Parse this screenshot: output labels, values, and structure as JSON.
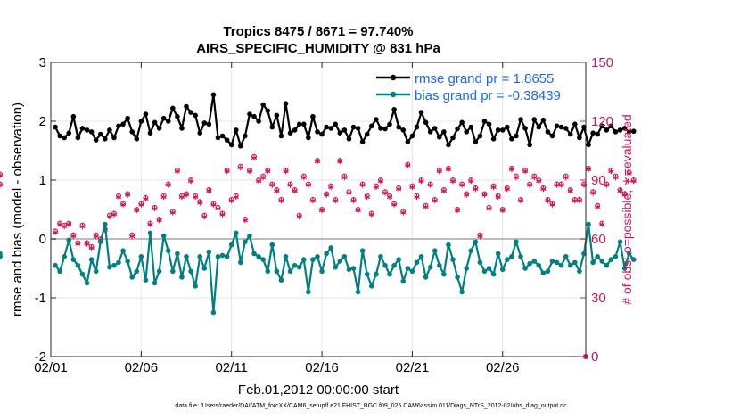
{
  "chart_data": {
    "type": "line",
    "title": "Tropics 8475 / 8671 = 97.740%",
    "subtitle": "AIRS_SPECIFIC_HUMIDITY @ 831 hPa",
    "xlabel": "Feb.01,2012 00:00:00 start",
    "ylabel": "rmse and bias (model - observation)",
    "ylabel_right": "# of obs: o=possible; ∗=evaluated",
    "xlim": [
      0,
      29.6
    ],
    "ylim": [
      -2,
      3
    ],
    "ylim_right": [
      0,
      150
    ],
    "x_ticks": [
      0,
      5,
      10,
      15,
      20,
      25
    ],
    "x_tick_labels": [
      "02/01",
      "02/06",
      "02/11",
      "02/16",
      "02/21",
      "02/26"
    ],
    "y_ticks": [
      -2,
      -1,
      0,
      1,
      2,
      3
    ],
    "y_tick_labels": [
      "-2",
      "-1",
      "0",
      "1",
      "2",
      "3"
    ],
    "y_right_ticks": [
      0,
      30,
      60,
      90,
      120,
      150
    ],
    "y_right_tick_labels": [
      "0",
      "30",
      "60",
      "90",
      "120",
      "150"
    ],
    "grid": true,
    "legend_position": "top-right",
    "series": [
      {
        "name": "rmse grand pr = 1.8655",
        "color": "#000000",
        "marker": "filled-circle",
        "values": [
          1.9,
          1.75,
          1.72,
          1.8,
          2.08,
          1.72,
          1.88,
          1.85,
          1.82,
          1.68,
          1.78,
          1.7,
          1.85,
          1.72,
          1.92,
          1.95,
          2.05,
          1.82,
          1.7,
          2.0,
          2.12,
          1.8,
          1.98,
          1.88,
          2.05,
          2.0,
          2.22,
          2.08,
          1.88,
          2.25,
          2.15,
          2.1,
          1.8,
          1.97,
          1.95,
          2.45,
          1.72,
          1.75,
          1.68,
          1.6,
          1.85,
          1.58,
          1.75,
          2.12,
          2.08,
          2.0,
          2.28,
          2.18,
          1.9,
          2.1,
          1.75,
          2.3,
          1.8,
          1.85,
          1.95,
          1.95,
          1.72,
          2.08,
          1.82,
          1.78,
          1.9,
          1.88,
          1.95,
          1.8,
          1.85,
          1.7,
          1.9,
          1.88,
          1.65,
          1.78,
          1.92,
          2.03,
          1.88,
          1.87,
          1.95,
          2.2,
          1.9,
          1.85,
          1.65,
          1.75,
          1.9,
          2.15,
          1.98,
          1.82,
          1.88,
          1.73,
          1.82,
          1.6,
          1.72,
          1.87,
          1.98,
          1.82,
          1.9,
          1.65,
          1.75,
          2.0,
          1.95,
          1.7,
          1.85,
          1.85,
          1.9,
          1.7,
          1.75,
          2.03,
          1.88,
          1.6,
          2.03,
          1.9,
          2.02,
          1.82,
          1.75,
          1.92,
          1.9,
          1.88,
          1.78,
          1.95,
          1.72,
          1.9,
          1.6,
          1.8,
          1.78,
          1.92,
          1.85,
          1.92,
          1.82,
          1.85,
          1.88,
          1.82,
          1.83
        ]
      },
      {
        "name": "bias grand pr = -0.38439",
        "color": "#008080",
        "marker": "filled-circle",
        "values": [
          -0.45,
          -0.55,
          -0.3,
          -0.02,
          -0.35,
          -0.45,
          -0.6,
          -0.75,
          -0.35,
          -0.55,
          -0.05,
          0.25,
          -0.48,
          -0.45,
          -0.4,
          -0.2,
          -0.38,
          -0.65,
          -0.55,
          -0.3,
          -0.7,
          0.1,
          -0.75,
          -0.55,
          0.05,
          -0.2,
          -0.55,
          -0.25,
          -0.65,
          -0.3,
          -0.55,
          -0.8,
          -0.3,
          -0.5,
          -0.22,
          -1.25,
          -0.3,
          -0.28,
          -0.3,
          -0.1,
          0.1,
          -0.4,
          -0.05,
          0.05,
          -0.25,
          -0.3,
          -0.35,
          -0.55,
          -0.1,
          -0.55,
          -0.7,
          -0.3,
          -0.55,
          -0.45,
          -0.48,
          -0.35,
          -0.9,
          -0.35,
          -0.3,
          -0.55,
          -0.25,
          -0.15,
          -0.48,
          -0.38,
          -0.3,
          -0.52,
          -0.5,
          -0.9,
          -0.2,
          -0.6,
          -0.8,
          -0.6,
          -0.3,
          -0.45,
          -0.6,
          -0.45,
          -0.35,
          -0.72,
          -0.5,
          -0.55,
          -0.4,
          -0.3,
          -0.65,
          -0.48,
          -0.2,
          -0.45,
          -0.6,
          -0.1,
          -0.35,
          -0.65,
          -0.9,
          -0.5,
          -0.2,
          -0.05,
          -0.4,
          -0.55,
          -0.5,
          -0.6,
          -0.25,
          -0.52,
          -0.35,
          -0.3,
          -0.05,
          -0.3,
          -0.5,
          -0.42,
          -0.38,
          -0.45,
          -0.58,
          -0.55,
          -0.38,
          -0.4,
          -0.45,
          -0.3,
          -0.45,
          -0.4,
          -0.55,
          -0.25,
          0.25,
          -0.4,
          -0.3,
          -0.38,
          -0.45,
          -0.35,
          -0.3,
          -0.05,
          -0.5,
          -0.25,
          -0.35,
          -0.3,
          -0.3,
          -0.25,
          -0.28
        ]
      }
    ],
    "obs_possible": {
      "name": "o=possible",
      "color": "#d4145a",
      "values": [
        64,
        68,
        67,
        68,
        62,
        58,
        67,
        58,
        56,
        62,
        60,
        65,
        72,
        73,
        82,
        78,
        83,
        62,
        75,
        78,
        81,
        68,
        76,
        70,
        82,
        88,
        74,
        95,
        82,
        83,
        90,
        82,
        79,
        72,
        85,
        78,
        76,
        73,
        95,
        80,
        82,
        97,
        70,
        95,
        102,
        90,
        92,
        95,
        88,
        85,
        80,
        95,
        88,
        85,
        72,
        92,
        88,
        80,
        100,
        75,
        83,
        87,
        80,
        100,
        92,
        84,
        80,
        75,
        88,
        82,
        73,
        87,
        90,
        84,
        82,
        78,
        86,
        74,
        98,
        87,
        82,
        90,
        77,
        88,
        80,
        95,
        85,
        96,
        90,
        75,
        88,
        83,
        90,
        86,
        62,
        83,
        76,
        87,
        82,
        75,
        86,
        96,
        92,
        80,
        95,
        88,
        92,
        90,
        86,
        80,
        78,
        88,
        88,
        92,
        85,
        80,
        80,
        88,
        96,
        84,
        77,
        68,
        88,
        95,
        92,
        85,
        83,
        94,
        90,
        88,
        93
      ]
    },
    "obs_evaluated": {
      "name": "∗=evaluated",
      "color": "#d4145a",
      "values": [
        63,
        67,
        66,
        67,
        61,
        57,
        66,
        57,
        55,
        61,
        59,
        64,
        71,
        72,
        81,
        77,
        82,
        61,
        74,
        77,
        80,
        67,
        75,
        69,
        81,
        87,
        73,
        94,
        81,
        82,
        89,
        81,
        78,
        71,
        84,
        77,
        75,
        72,
        94,
        79,
        81,
        96,
        69,
        94,
        101,
        89,
        91,
        94,
        87,
        84,
        79,
        94,
        87,
        84,
        71,
        91,
        87,
        79,
        99,
        74,
        82,
        86,
        79,
        99,
        91,
        83,
        79,
        74,
        87,
        81,
        72,
        86,
        89,
        83,
        81,
        77,
        85,
        73,
        97,
        86,
        81,
        89,
        76,
        87,
        79,
        94,
        84,
        95,
        89,
        74,
        87,
        82,
        89,
        85,
        61,
        82,
        75,
        86,
        81,
        74,
        85,
        95,
        91,
        79,
        94,
        87,
        91,
        89,
        85,
        79,
        77,
        87,
        87,
        91,
        84,
        79,
        79,
        87,
        95,
        83,
        76,
        67,
        87,
        94,
        91,
        84,
        82,
        93,
        89,
        87,
        92
      ]
    }
  },
  "footer": "data file: /Users/raeder/DAI/ATM_forcXX/CAM6_setup/f.e21.FHIST_BGC.f09_025.CAM6assim.011/Diags_NTrS_2012-02/obs_diag_output.nc"
}
